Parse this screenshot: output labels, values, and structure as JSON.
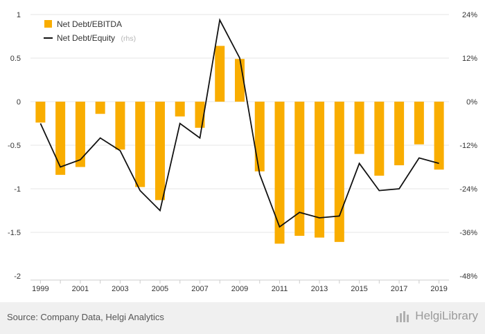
{
  "chart_data": {
    "type": "bar+line",
    "x": [
      "1999",
      "2000",
      "2001",
      "2002",
      "2003",
      "2004",
      "2005",
      "2006",
      "2007",
      "2008",
      "2009",
      "2010",
      "2011",
      "2012",
      "2013",
      "2014",
      "2015",
      "2016",
      "2017",
      "2018",
      "2019"
    ],
    "x_tick_labels": [
      "1999",
      "2001",
      "2003",
      "2005",
      "2007",
      "2009",
      "2011",
      "2013",
      "2015",
      "2017",
      "2019"
    ],
    "series": [
      {
        "name": "Net Debt/EBITDA",
        "kind": "bar",
        "axis": "left",
        "color": "#f9ad00",
        "values": [
          -0.24,
          -0.84,
          -0.75,
          -0.14,
          -0.55,
          -0.98,
          -1.13,
          -0.17,
          -0.3,
          0.64,
          0.49,
          -0.8,
          -1.63,
          -1.54,
          -1.56,
          -1.61,
          -0.6,
          -0.85,
          -0.73,
          -0.49,
          -0.78
        ]
      },
      {
        "name": "Net Debt/Equity",
        "name_suffix": "(rhs)",
        "kind": "line",
        "axis": "right",
        "color": "#111111",
        "values": [
          -6.0,
          -18.0,
          -16.0,
          -10.0,
          -13.5,
          -24.5,
          -30.0,
          -6.0,
          -10.0,
          22.5,
          12.0,
          -20.0,
          -34.5,
          -30.5,
          -32.0,
          -31.5,
          -17.0,
          -24.5,
          -24.0,
          -15.5,
          -17.0
        ]
      }
    ],
    "y_left": {
      "ticks": [
        1,
        0.5,
        0,
        -0.5,
        -1,
        -1.5,
        -2
      ],
      "tick_labels": [
        "1",
        "0.5",
        "0",
        "-0.5",
        "-1",
        "-1.5",
        "-2"
      ],
      "range": [
        -2,
        1
      ]
    },
    "y_right": {
      "ticks": [
        24,
        12,
        0,
        -12,
        -24,
        -36,
        -48
      ],
      "tick_labels": [
        "24%",
        "12%",
        "0%",
        "-12%",
        "-24%",
        "-36%",
        "-48%"
      ],
      "range": [
        -48,
        24
      ],
      "unit": "%"
    },
    "grid": true,
    "legend_position": "top-left"
  },
  "footer": {
    "source": "Source: Company Data, Helgi Analytics",
    "brand": "HelgiLibrary",
    "brand_icon": "chart-bars-icon"
  }
}
